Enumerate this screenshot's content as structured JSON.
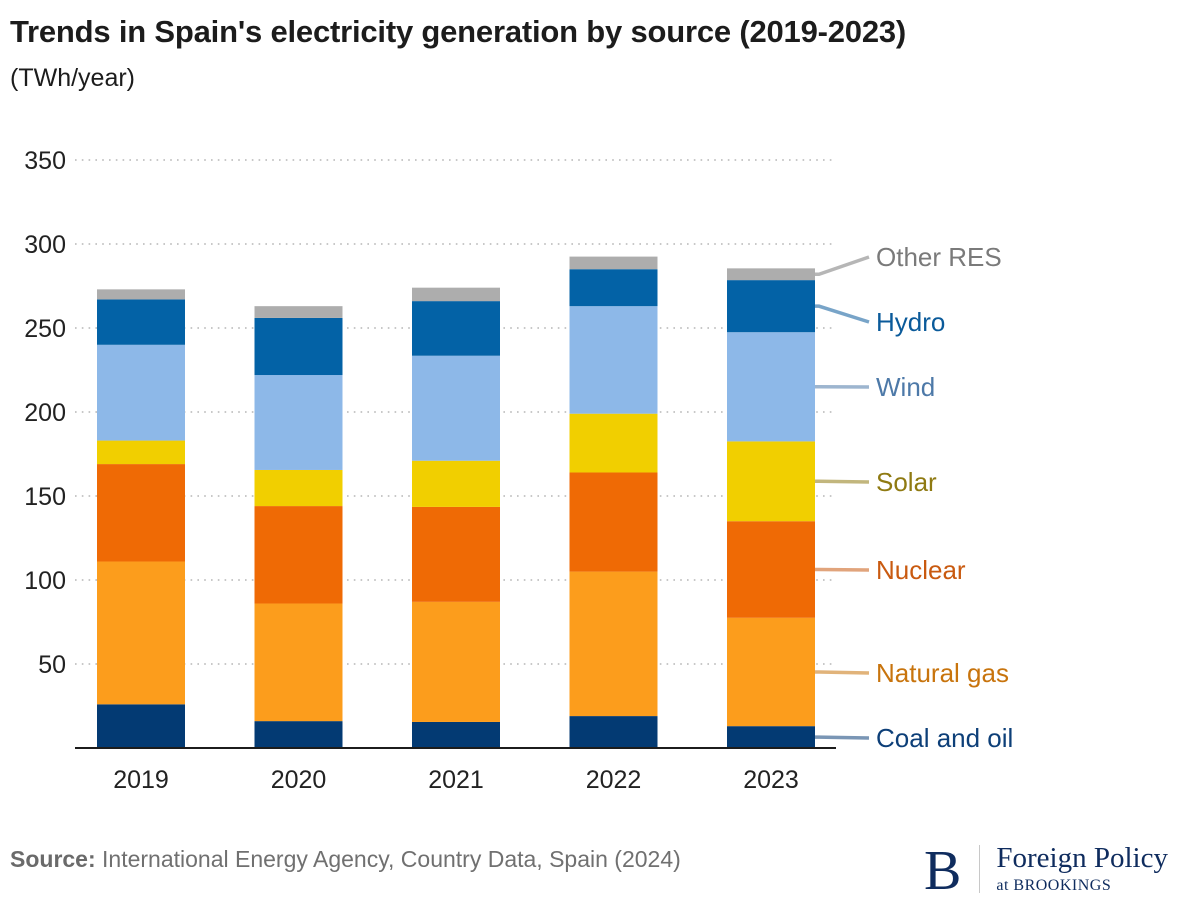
{
  "header": {
    "title": "Trends in Spain's electricity generation by source (2019-2023)",
    "subtitle": "(TWh/year)"
  },
  "footer": {
    "source_label": "Source:",
    "source_text": "International Energy Agency, Country Data, Spain (2024)",
    "logo_letter": "B",
    "logo_main": "Foreign Policy",
    "logo_sub": "at BROOKINGS"
  },
  "chart_data": {
    "type": "bar",
    "stacked": true,
    "title": "Trends in Spain's electricity generation by source (2019-2023)",
    "ylabel": "(TWh/year)",
    "xlabel": "",
    "categories": [
      "2019",
      "2020",
      "2021",
      "2022",
      "2023"
    ],
    "ylim": [
      0,
      350
    ],
    "yticks": [
      50,
      100,
      150,
      200,
      250,
      300,
      350
    ],
    "grid": "horizontal dotted",
    "legend_placement": "right, inline labels",
    "series": [
      {
        "name": "Coal and oil",
        "color": "#033a73",
        "label_color": "#0d3f78",
        "values": [
          26,
          16,
          15.5,
          19,
          13
        ]
      },
      {
        "name": "Natural gas",
        "color": "#fc9d1c",
        "label_color": "#c8740d",
        "values": [
          85,
          70,
          71.5,
          86,
          64.5
        ]
      },
      {
        "name": "Nuclear",
        "color": "#ef6a05",
        "label_color": "#c95a10",
        "values": [
          58,
          58,
          56.5,
          59,
          57.5
        ]
      },
      {
        "name": "Solar",
        "color": "#f1cf00",
        "label_color": "#8f7a12",
        "values": [
          14,
          21.5,
          27.5,
          35,
          47.5
        ]
      },
      {
        "name": "Wind",
        "color": "#8db8e8",
        "label_color": "#4d79a8",
        "values": [
          57,
          56.5,
          62.5,
          64,
          65
        ]
      },
      {
        "name": "Hydro",
        "color": "#0362a6",
        "label_color": "#0a5a9a",
        "values": [
          27,
          34,
          32.5,
          22,
          31
        ]
      },
      {
        "name": "Other RES",
        "color": "#adadad",
        "label_color": "#7a7a7a",
        "values": [
          6,
          7,
          8,
          7.5,
          7
        ]
      }
    ]
  }
}
